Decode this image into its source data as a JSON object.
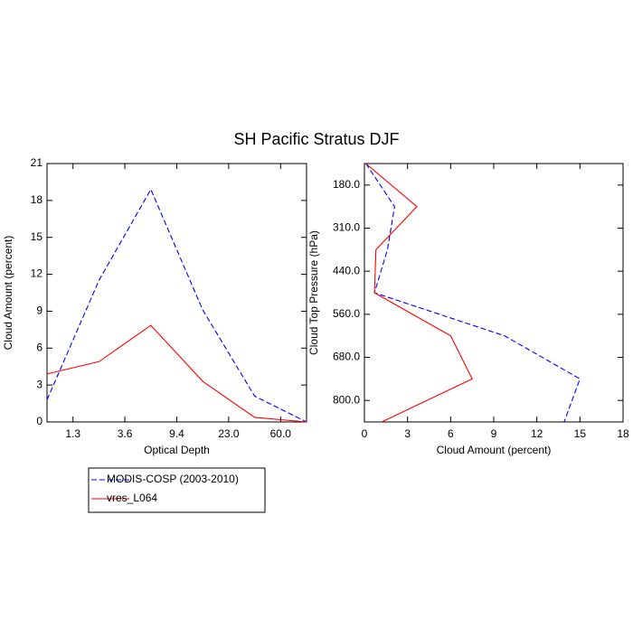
{
  "title": "SH Pacific Stratus DJF",
  "chart_data": [
    {
      "type": "line",
      "orientation": "vertical",
      "x_label": "Optical Depth",
      "y_label": "Cloud Amount (percent)",
      "x": [
        0,
        1,
        2,
        3,
        4,
        5
      ],
      "xlim": [
        0,
        5
      ],
      "xticks": [
        {
          "value": 0.5,
          "label": "1.3"
        },
        {
          "value": 1.5,
          "label": "3.6"
        },
        {
          "value": 2.5,
          "label": "9.4"
        },
        {
          "value": 3.5,
          "label": "23.0"
        },
        {
          "value": 4.5,
          "label": "60.0"
        }
      ],
      "ylim": [
        0,
        21
      ],
      "yticks": [
        0,
        3,
        6,
        9,
        12,
        15,
        18,
        21
      ],
      "series": [
        {
          "name": "MODIS-COSP (2003-2010)",
          "color": "#0000ff",
          "dash": true,
          "values": [
            1.8,
            11.5,
            18.9,
            9.1,
            2.1,
            0
          ]
        },
        {
          "name": "vres_L064",
          "color": "#ff0000",
          "dash": false,
          "values": [
            3.9,
            4.9,
            7.85,
            3.3,
            0.37,
            0
          ]
        }
      ]
    },
    {
      "type": "line",
      "orientation": "horizontal",
      "x_label": "Cloud Amount (percent)",
      "y_label": "Cloud Top Pressure (hPa)",
      "y": [
        0,
        1,
        2,
        3,
        4,
        5,
        6
      ],
      "ylim": [
        6,
        0
      ],
      "yticks": [
        {
          "value": 0.5,
          "label": "180.0"
        },
        {
          "value": 1.5,
          "label": "310.0"
        },
        {
          "value": 2.5,
          "label": "440.0"
        },
        {
          "value": 3.5,
          "label": "560.0"
        },
        {
          "value": 4.5,
          "label": "680.0"
        },
        {
          "value": 5.5,
          "label": "800.0"
        }
      ],
      "xlim": [
        0,
        18
      ],
      "xticks": [
        0,
        3,
        6,
        9,
        12,
        15,
        18
      ],
      "series": [
        {
          "color": "#0000ff",
          "dash": true,
          "values": [
            0.1,
            2.1,
            1.6,
            0.7,
            9.75,
            15.0,
            13.9
          ]
        },
        {
          "color": "#ff0000",
          "dash": false,
          "values": [
            0.1,
            3.65,
            0.8,
            0.7,
            6.0,
            7.5,
            1.2
          ]
        }
      ]
    }
  ]
}
